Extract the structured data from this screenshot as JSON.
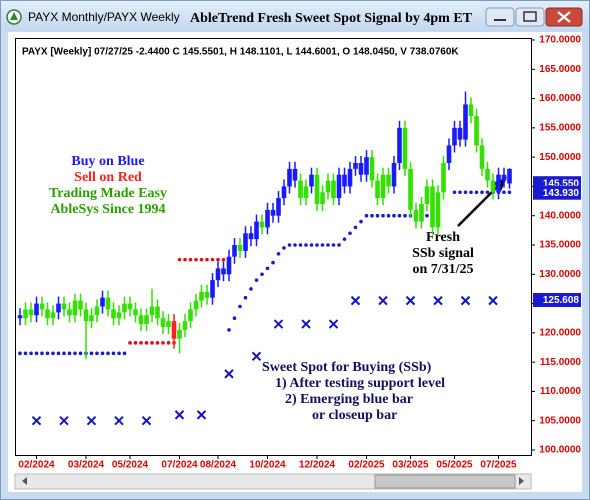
{
  "window_title": "PAYX Monthly/PAYX Weekly",
  "chart_data": {
    "type": "candlestick",
    "title": "AbleTrend Fresh Sweet Spot Signal by 4pm ET",
    "subtitle": "PAYX [Weekly] 07/27/25  -2.4400 C 145.5501, H 148.1101, L 144.6001, O 148.0450, V 738.0760K",
    "legend_text": [
      "Buy on Blue",
      "Sell on Red",
      "Trading Made Easy",
      "AbleSys Since 1994"
    ],
    "legend_colors": [
      "#1a1aff",
      "#ff2020",
      "#2aa000",
      "#2aa000"
    ],
    "annotation_fresh": [
      "Fresh",
      "SSb signal",
      "on 7/31/25"
    ],
    "annotation_ssb": [
      "Sweet Spot for Buying (SSb)",
      "1) After testing support level",
      "2) Emerging blue bar",
      "or closeup bar"
    ],
    "categories": [
      null,
      null,
      null,
      "02/2024",
      null,
      null,
      null,
      null,
      null,
      null,
      null,
      null,
      "03/2024",
      null,
      null,
      null,
      null,
      null,
      null,
      null,
      "05/2024",
      null,
      null,
      null,
      null,
      null,
      null,
      null,
      null,
      "07/2024",
      null,
      null,
      null,
      null,
      null,
      null,
      "08/2024",
      null,
      null,
      null,
      null,
      null,
      null,
      null,
      null,
      "10/2024",
      null,
      null,
      null,
      null,
      null,
      null,
      null,
      null,
      "12/2024",
      null,
      null,
      null,
      null,
      null,
      null,
      null,
      null,
      "02/2025",
      null,
      null,
      null,
      null,
      null,
      null,
      null,
      "03/2025",
      null,
      null,
      null,
      null,
      null,
      null,
      null,
      "05/2025",
      null,
      null,
      null,
      null,
      null,
      null,
      null,
      "07/2025",
      null,
      null
    ],
    "open": [
      123,
      122.5,
      124,
      123,
      125,
      124,
      122.5,
      123.5,
      125,
      124,
      123,
      125.5,
      124,
      122,
      123,
      124.5,
      126,
      124,
      122.5,
      123.5,
      125,
      124,
      123,
      121.5,
      123,
      124.5,
      122.5,
      121,
      122,
      119,
      120.5,
      122,
      124,
      125.5,
      127,
      126,
      129,
      131,
      130,
      133,
      135,
      134,
      137,
      136,
      139,
      138,
      141,
      140,
      143,
      145,
      148,
      146,
      143,
      145,
      147,
      142,
      144,
      146,
      143,
      147,
      145,
      148,
      149,
      147,
      150,
      146,
      143,
      147,
      145,
      149,
      155,
      148,
      141,
      139,
      142,
      145,
      138,
      144,
      149,
      152,
      155,
      153,
      159,
      157,
      152,
      148,
      146,
      144,
      147,
      148
    ],
    "high": [
      124.2,
      125.2,
      125.2,
      126.2,
      126.2,
      125.2,
      124.7,
      126.2,
      126.2,
      125.2,
      126.7,
      126.7,
      125.2,
      124.2,
      125.7,
      127.2,
      127.2,
      125.2,
      124.7,
      126.2,
      126.2,
      125.2,
      124.2,
      124.2,
      127.5,
      125.7,
      123.7,
      123.2,
      123.2,
      121.7,
      123.2,
      125.2,
      126.7,
      128.2,
      128.2,
      130.2,
      132.2,
      132.2,
      134.2,
      136.2,
      136.2,
      138.2,
      138.2,
      140.2,
      140.2,
      142.2,
      142.2,
      144.2,
      146.2,
      149.2,
      149.2,
      147.2,
      146.2,
      148.2,
      148.2,
      145.2,
      147.2,
      147.2,
      148.2,
      148.2,
      149.2,
      150.2,
      150.2,
      151.2,
      151.2,
      147.2,
      148.2,
      148.2,
      150.2,
      156.2,
      156.2,
      149.2,
      142.2,
      143.2,
      146.2,
      146.2,
      145.2,
      150.2,
      153.2,
      156.2,
      156.2,
      161.2,
      160.2,
      158.2,
      153.2,
      149.2,
      147.2,
      148.2,
      148.2,
      148.1
    ],
    "low": [
      121.3,
      121.3,
      121.8,
      121.8,
      122.8,
      121.3,
      121.3,
      122.3,
      122.8,
      121.8,
      121.8,
      122.8,
      115.5,
      120.8,
      121.8,
      123.3,
      122.8,
      121.3,
      121.3,
      122.3,
      122.8,
      121.8,
      120.3,
      120.3,
      121.8,
      121.3,
      119.8,
      119.8,
      117.3,
      116.5,
      119.3,
      120.8,
      122.8,
      124.3,
      124.8,
      124.8,
      127.8,
      128.8,
      128.8,
      131.8,
      132.8,
      132.8,
      134.8,
      134.8,
      136.8,
      136.8,
      138.8,
      138.8,
      141.8,
      143.8,
      144.8,
      141.8,
      141.8,
      143.8,
      140.8,
      140.8,
      142.8,
      141.8,
      141.8,
      143.8,
      143.8,
      146.8,
      145.8,
      145.8,
      144.8,
      141.8,
      141.8,
      143.8,
      143.8,
      147.8,
      146.8,
      139.8,
      137.8,
      137.8,
      140.8,
      136.8,
      136.8,
      142.8,
      147.8,
      150.8,
      151.8,
      151.8,
      155.8,
      150.8,
      146.8,
      144.8,
      142.8,
      142.8,
      144.8,
      144.6
    ],
    "close": [
      122.5,
      124,
      123,
      125,
      124,
      122.5,
      123.5,
      125,
      124,
      123,
      125.5,
      124,
      122,
      123,
      124.5,
      126,
      124,
      122.5,
      123.5,
      125,
      124,
      123,
      121.5,
      123,
      124.5,
      122.5,
      121,
      122,
      119,
      120.5,
      122,
      124,
      125.5,
      127,
      126,
      129,
      131,
      130,
      133,
      135,
      134,
      137,
      136,
      139,
      138,
      141,
      140,
      143,
      145,
      148,
      146,
      143,
      145,
      147,
      142,
      144,
      146,
      143,
      147,
      145,
      148,
      149,
      147,
      150,
      146,
      143,
      147,
      145,
      149,
      155,
      148,
      141,
      139,
      142,
      145,
      138,
      144,
      149,
      152,
      155,
      153,
      159,
      157,
      152,
      148,
      146,
      144,
      147,
      146,
      145.5
    ],
    "colors": [
      "#1a1aff",
      "#33e000",
      "#33e000",
      "#1a1aff",
      "#33e000",
      "#33e000",
      "#33e000",
      "#1a1aff",
      "#33e000",
      "#33e000",
      "#33e000",
      "#33e000",
      "#33e000",
      "#33e000",
      "#33e000",
      "#1a1aff",
      "#33e000",
      "#33e000",
      "#33e000",
      "#33e000",
      "#33e000",
      "#33e000",
      "#33e000",
      "#33e000",
      "#33e000",
      "#33e000",
      "#33e000",
      "#33e000",
      "#ff2020",
      "#33e000",
      "#33e000",
      "#33e000",
      "#33e000",
      "#33e000",
      "#33e000",
      "#1a1aff",
      "#1a1aff",
      "#1a1aff",
      "#1a1aff",
      "#1a1aff",
      "#33e000",
      "#1a1aff",
      "#1a1aff",
      "#1a1aff",
      "#33e000",
      "#1a1aff",
      "#1a1aff",
      "#1a1aff",
      "#1a1aff",
      "#1a1aff",
      "#1a1aff",
      "#33e000",
      "#33e000",
      "#1a1aff",
      "#33e000",
      "#33e000",
      "#33e000",
      "#33e000",
      "#1a1aff",
      "#1a1aff",
      "#1a1aff",
      "#1a1aff",
      "#1a1aff",
      "#1a1aff",
      "#33e000",
      "#33e000",
      "#33e000",
      "#33e000",
      "#1a1aff",
      "#1a1aff",
      "#33e000",
      "#33e000",
      "#33e000",
      "#33e000",
      "#33e000",
      "#33e000",
      "#33e000",
      "#33e000",
      "#1a1aff",
      "#1a1aff",
      "#1a1aff",
      "#1a1aff",
      "#33e000",
      "#33e000",
      "#33e000",
      "#33e000",
      "#33e000",
      "#1a1aff",
      "#1a1aff",
      "#1a1aff"
    ],
    "support_blue": [
      116.5,
      116.5,
      116.5,
      116.5,
      116.5,
      116.5,
      116.5,
      116.5,
      116.5,
      116.5,
      116.5,
      116.5,
      116.5,
      116.5,
      116.5,
      116.5,
      116.5,
      116.5,
      116.5,
      116.5,
      null,
      null,
      null,
      null,
      null,
      null,
      null,
      null,
      null,
      null,
      null,
      null,
      null,
      null,
      null,
      null,
      null,
      null,
      120.5,
      122.5,
      124.5,
      126,
      127.5,
      129,
      130,
      131,
      132,
      133.5,
      134.5,
      135,
      135,
      135,
      135,
      135,
      135,
      135,
      135,
      135,
      135,
      136,
      137,
      138,
      139,
      140,
      140,
      140,
      140,
      140,
      140,
      140,
      140,
      140,
      140,
      140,
      140,
      null,
      null,
      null,
      null,
      144,
      144,
      144,
      144,
      144,
      144,
      144,
      144,
      144,
      144,
      144
    ],
    "support_blue_color": "#1a1ad0",
    "support_red": [
      null,
      null,
      null,
      null,
      null,
      null,
      null,
      null,
      null,
      null,
      null,
      null,
      null,
      null,
      null,
      null,
      null,
      null,
      null,
      null,
      118.3,
      118.3,
      118.3,
      118.3,
      118.3,
      118.3,
      118.3,
      118.3,
      118.3,
      132.5,
      132.5,
      132.5,
      132.5,
      132.5,
      132.5,
      132.5,
      132.5,
      132.5,
      132.5,
      null,
      null,
      null,
      null,
      null,
      null,
      null,
      null,
      null,
      null,
      null,
      null,
      null,
      null,
      null,
      null,
      null,
      null,
      null,
      null,
      null,
      null,
      null,
      null,
      null,
      null,
      null,
      null,
      null,
      null,
      null,
      null,
      null,
      null,
      null,
      null,
      null,
      null,
      null,
      null,
      null,
      null,
      null,
      null,
      null,
      null,
      null,
      null,
      null,
      null,
      null
    ],
    "support_red_color": "#e01010",
    "xmarks": [
      null,
      null,
      null,
      105,
      null,
      null,
      null,
      null,
      105,
      null,
      null,
      null,
      null,
      105,
      null,
      null,
      null,
      null,
      105,
      null,
      null,
      null,
      null,
      105,
      null,
      null,
      null,
      null,
      null,
      106,
      null,
      null,
      null,
      106,
      null,
      null,
      null,
      null,
      113,
      null,
      null,
      null,
      null,
      116,
      null,
      null,
      null,
      121.5,
      null,
      null,
      null,
      null,
      121.5,
      null,
      null,
      null,
      null,
      121.5,
      null,
      null,
      null,
      125.5,
      null,
      null,
      null,
      null,
      125.5,
      null,
      null,
      null,
      null,
      125.5,
      null,
      null,
      null,
      null,
      125.5,
      null,
      null,
      null,
      null,
      125.5,
      null,
      null,
      null,
      null,
      125.5,
      null,
      null,
      null
    ],
    "xmarks_color": "#1515c0",
    "price_tags": [
      {
        "value": 145.55,
        "label": "145.550"
      },
      {
        "value": 143.93,
        "label": "143.930"
      },
      125.608
    ],
    "ylim": [
      100,
      170
    ],
    "yticks": [
      {
        "value": 100,
        "label": "100.0000"
      },
      {
        "value": 105,
        "label": "105.0000"
      },
      {
        "value": 110,
        "label": "110.0000"
      },
      {
        "value": 115,
        "label": "115.0000"
      },
      {
        "value": 120,
        "label": "120.0000"
      },
      {
        "value": 125,
        "label": "125.0000"
      },
      {
        "value": 130,
        "label": "130.0000"
      },
      {
        "value": 135,
        "label": "135.0000"
      },
      {
        "value": 140,
        "label": "140.0000"
      },
      {
        "value": 145,
        "label": "145.0000"
      },
      {
        "value": 150,
        "label": "150.0000"
      },
      {
        "value": 155,
        "label": "155.0000"
      },
      {
        "value": 160,
        "label": "160.0000"
      },
      {
        "value": 165,
        "label": "165.0000"
      },
      {
        "value": 170,
        "label": "170.0000"
      }
    ],
    "axis_color": "#e00000"
  }
}
